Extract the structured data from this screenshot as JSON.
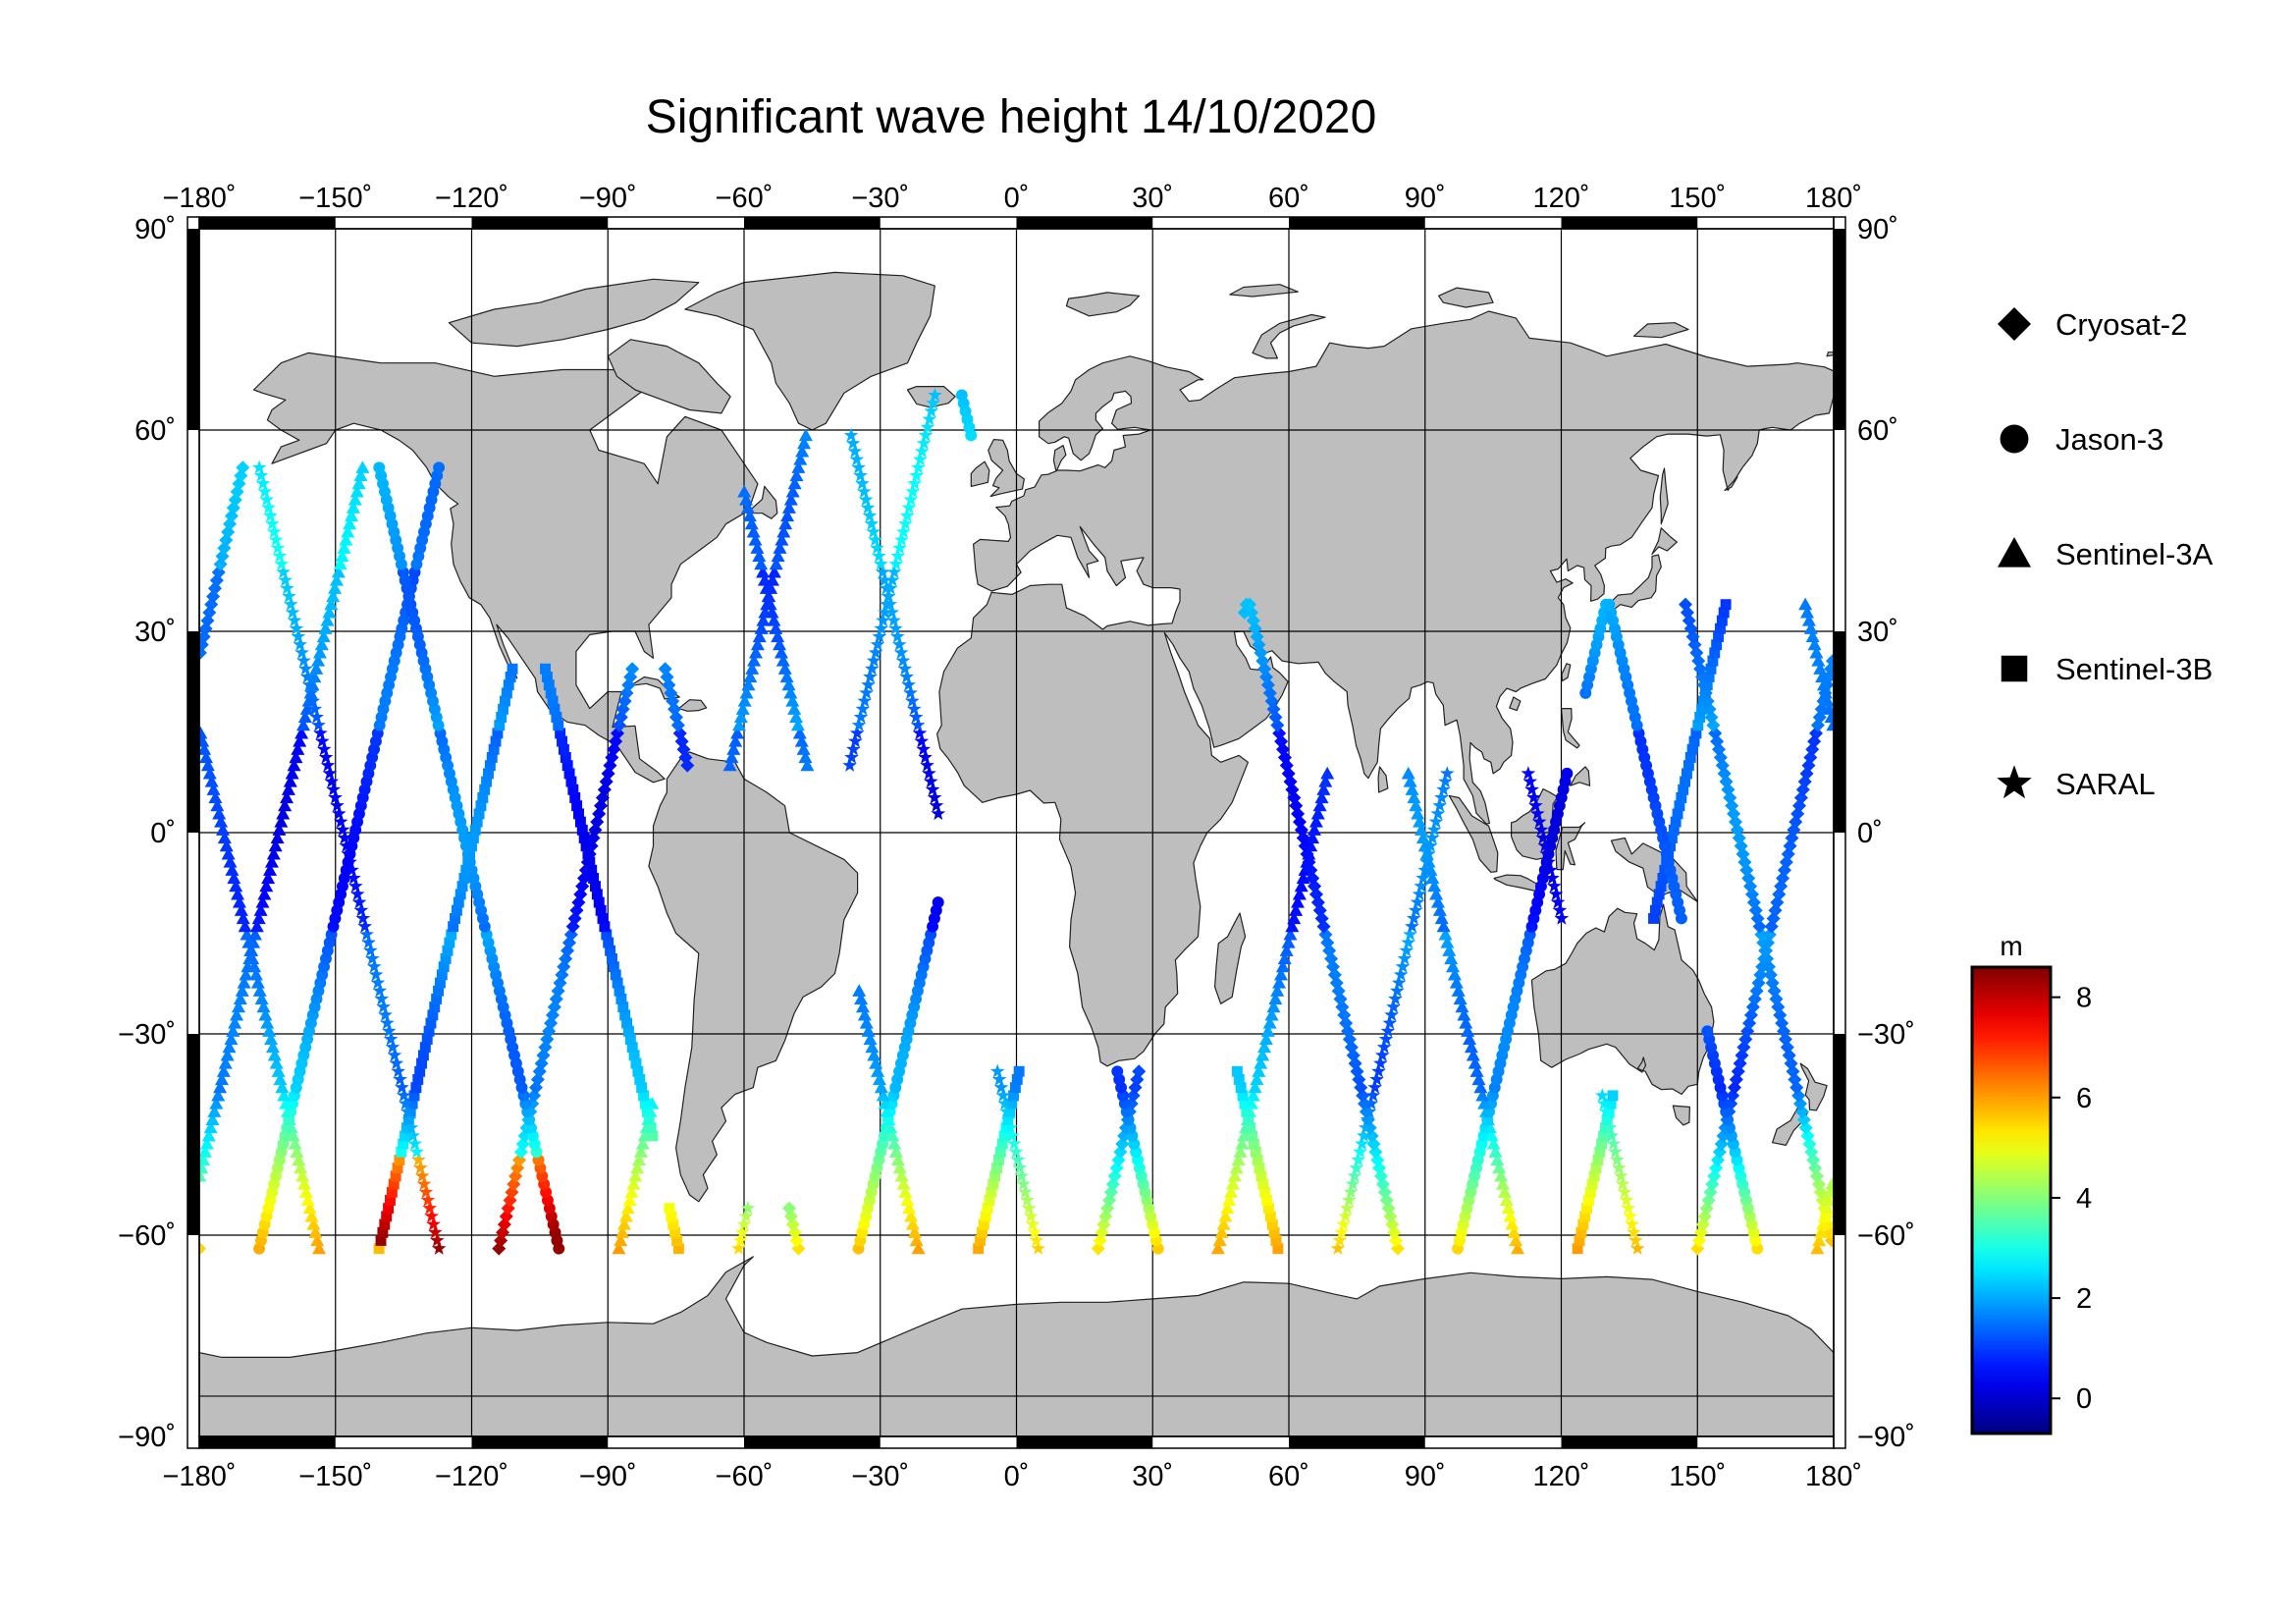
{
  "title": "Significant wave height 14/10/2020",
  "map": {
    "projection": "equirectangular",
    "lon_range": [
      -180,
      180
    ],
    "lat_range": [
      -90,
      90
    ],
    "lon_ticks": [
      "−180˚",
      "−150˚",
      "−120˚",
      "−90˚",
      "−60˚",
      "−30˚",
      "0˚",
      "30˚",
      "60˚",
      "90˚",
      "120˚",
      "150˚",
      "180˚"
    ],
    "lat_ticks_left": [
      "90˚",
      "60˚",
      "30˚",
      "0˚",
      "−30˚",
      "−60˚",
      "−90˚"
    ],
    "lat_ticks_right": [
      "90˚",
      "60˚",
      "30˚",
      "0˚",
      "−30˚",
      "−60˚",
      "−90˚"
    ],
    "grid": true,
    "land_color": "#bebebe",
    "ocean_color": "#ffffff"
  },
  "legend": {
    "placement": "right",
    "items": [
      {
        "label": "Cryosat-2",
        "icon": "diamond-icon"
      },
      {
        "label": "Jason-3",
        "icon": "circle-icon"
      },
      {
        "label": "Sentinel-3A",
        "icon": "triangle-icon"
      },
      {
        "label": "Sentinel-3B",
        "icon": "square-icon"
      },
      {
        "label": "SARAL",
        "icon": "star-icon"
      }
    ]
  },
  "colorbar": {
    "unit": "m",
    "range": [
      -0.7,
      8.6
    ],
    "ticks": [
      "8",
      "6",
      "4",
      "2",
      "0"
    ],
    "tick_values": [
      8,
      6,
      4,
      2,
      0
    ],
    "colormap": "jet"
  }
}
